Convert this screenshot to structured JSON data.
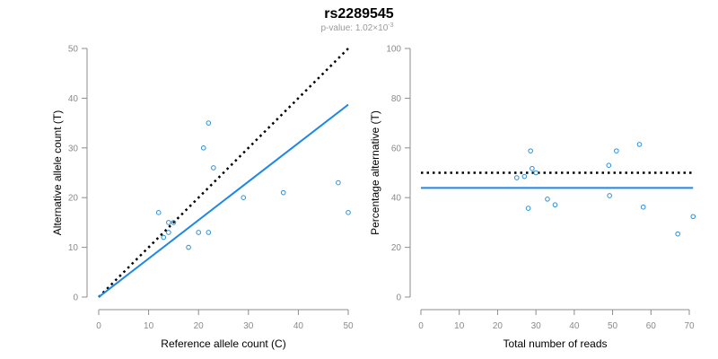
{
  "title": "rs2289545",
  "subtitle": {
    "prefix": "p-value: 1.02×10",
    "exponent": "-3"
  },
  "colors": {
    "points": "#2b8fd6",
    "fit_line": "#1e88e5",
    "reference_line": "#000000",
    "axis": "#8c8c8c",
    "tick_text": "#8a8a8a"
  },
  "chart_data": [
    {
      "type": "scatter",
      "xlabel": "Reference allele count (C)",
      "ylabel": "Alternative allele count (T)",
      "xlim": [
        0,
        50
      ],
      "ylim": [
        0,
        50
      ],
      "xticks": [
        0,
        10,
        20,
        30,
        40,
        50
      ],
      "yticks": [
        0,
        10,
        20,
        30,
        40,
        50
      ],
      "points": [
        {
          "x": 12,
          "y": 17
        },
        {
          "x": 13,
          "y": 12
        },
        {
          "x": 14,
          "y": 15
        },
        {
          "x": 14,
          "y": 13
        },
        {
          "x": 15,
          "y": 15
        },
        {
          "x": 18,
          "y": 10
        },
        {
          "x": 20,
          "y": 13
        },
        {
          "x": 21,
          "y": 30
        },
        {
          "x": 22,
          "y": 35
        },
        {
          "x": 22,
          "y": 13
        },
        {
          "x": 23,
          "y": 26
        },
        {
          "x": 29,
          "y": 20
        },
        {
          "x": 37,
          "y": 21
        },
        {
          "x": 48,
          "y": 23
        },
        {
          "x": 50,
          "y": 17
        }
      ],
      "reference_line": {
        "style": "dotted",
        "from": [
          0,
          0
        ],
        "to": [
          50,
          50
        ]
      },
      "fit_line": {
        "style": "solid",
        "from": [
          0,
          0
        ],
        "to": [
          50,
          38.7
        ]
      }
    },
    {
      "type": "scatter",
      "xlabel": "Total number of reads",
      "ylabel": "Percentage alternative (T)",
      "xlim": [
        0,
        70
      ],
      "ylim": [
        0,
        100
      ],
      "xticks": [
        0,
        10,
        20,
        30,
        40,
        50,
        60,
        70
      ],
      "yticks": [
        0,
        20,
        40,
        60,
        80,
        100
      ],
      "points": [
        {
          "x": 25,
          "y": 48
        },
        {
          "x": 27,
          "y": 48.5
        },
        {
          "x": 28,
          "y": 35.7
        },
        {
          "x": 28.6,
          "y": 58.8
        },
        {
          "x": 29,
          "y": 51.7
        },
        {
          "x": 30,
          "y": 50
        },
        {
          "x": 33,
          "y": 39.4
        },
        {
          "x": 35,
          "y": 37.1
        },
        {
          "x": 49,
          "y": 53
        },
        {
          "x": 49.2,
          "y": 40.8
        },
        {
          "x": 51,
          "y": 58.8
        },
        {
          "x": 57,
          "y": 61.4
        },
        {
          "x": 58,
          "y": 36.2
        },
        {
          "x": 67,
          "y": 25.4
        },
        {
          "x": 71,
          "y": 32.4
        }
      ],
      "reference_line": {
        "style": "dotted",
        "from": [
          0,
          50
        ],
        "to": [
          71,
          50
        ]
      },
      "fit_line": {
        "style": "solid",
        "from": [
          0,
          43.9
        ],
        "to": [
          71,
          43.9
        ]
      }
    }
  ]
}
